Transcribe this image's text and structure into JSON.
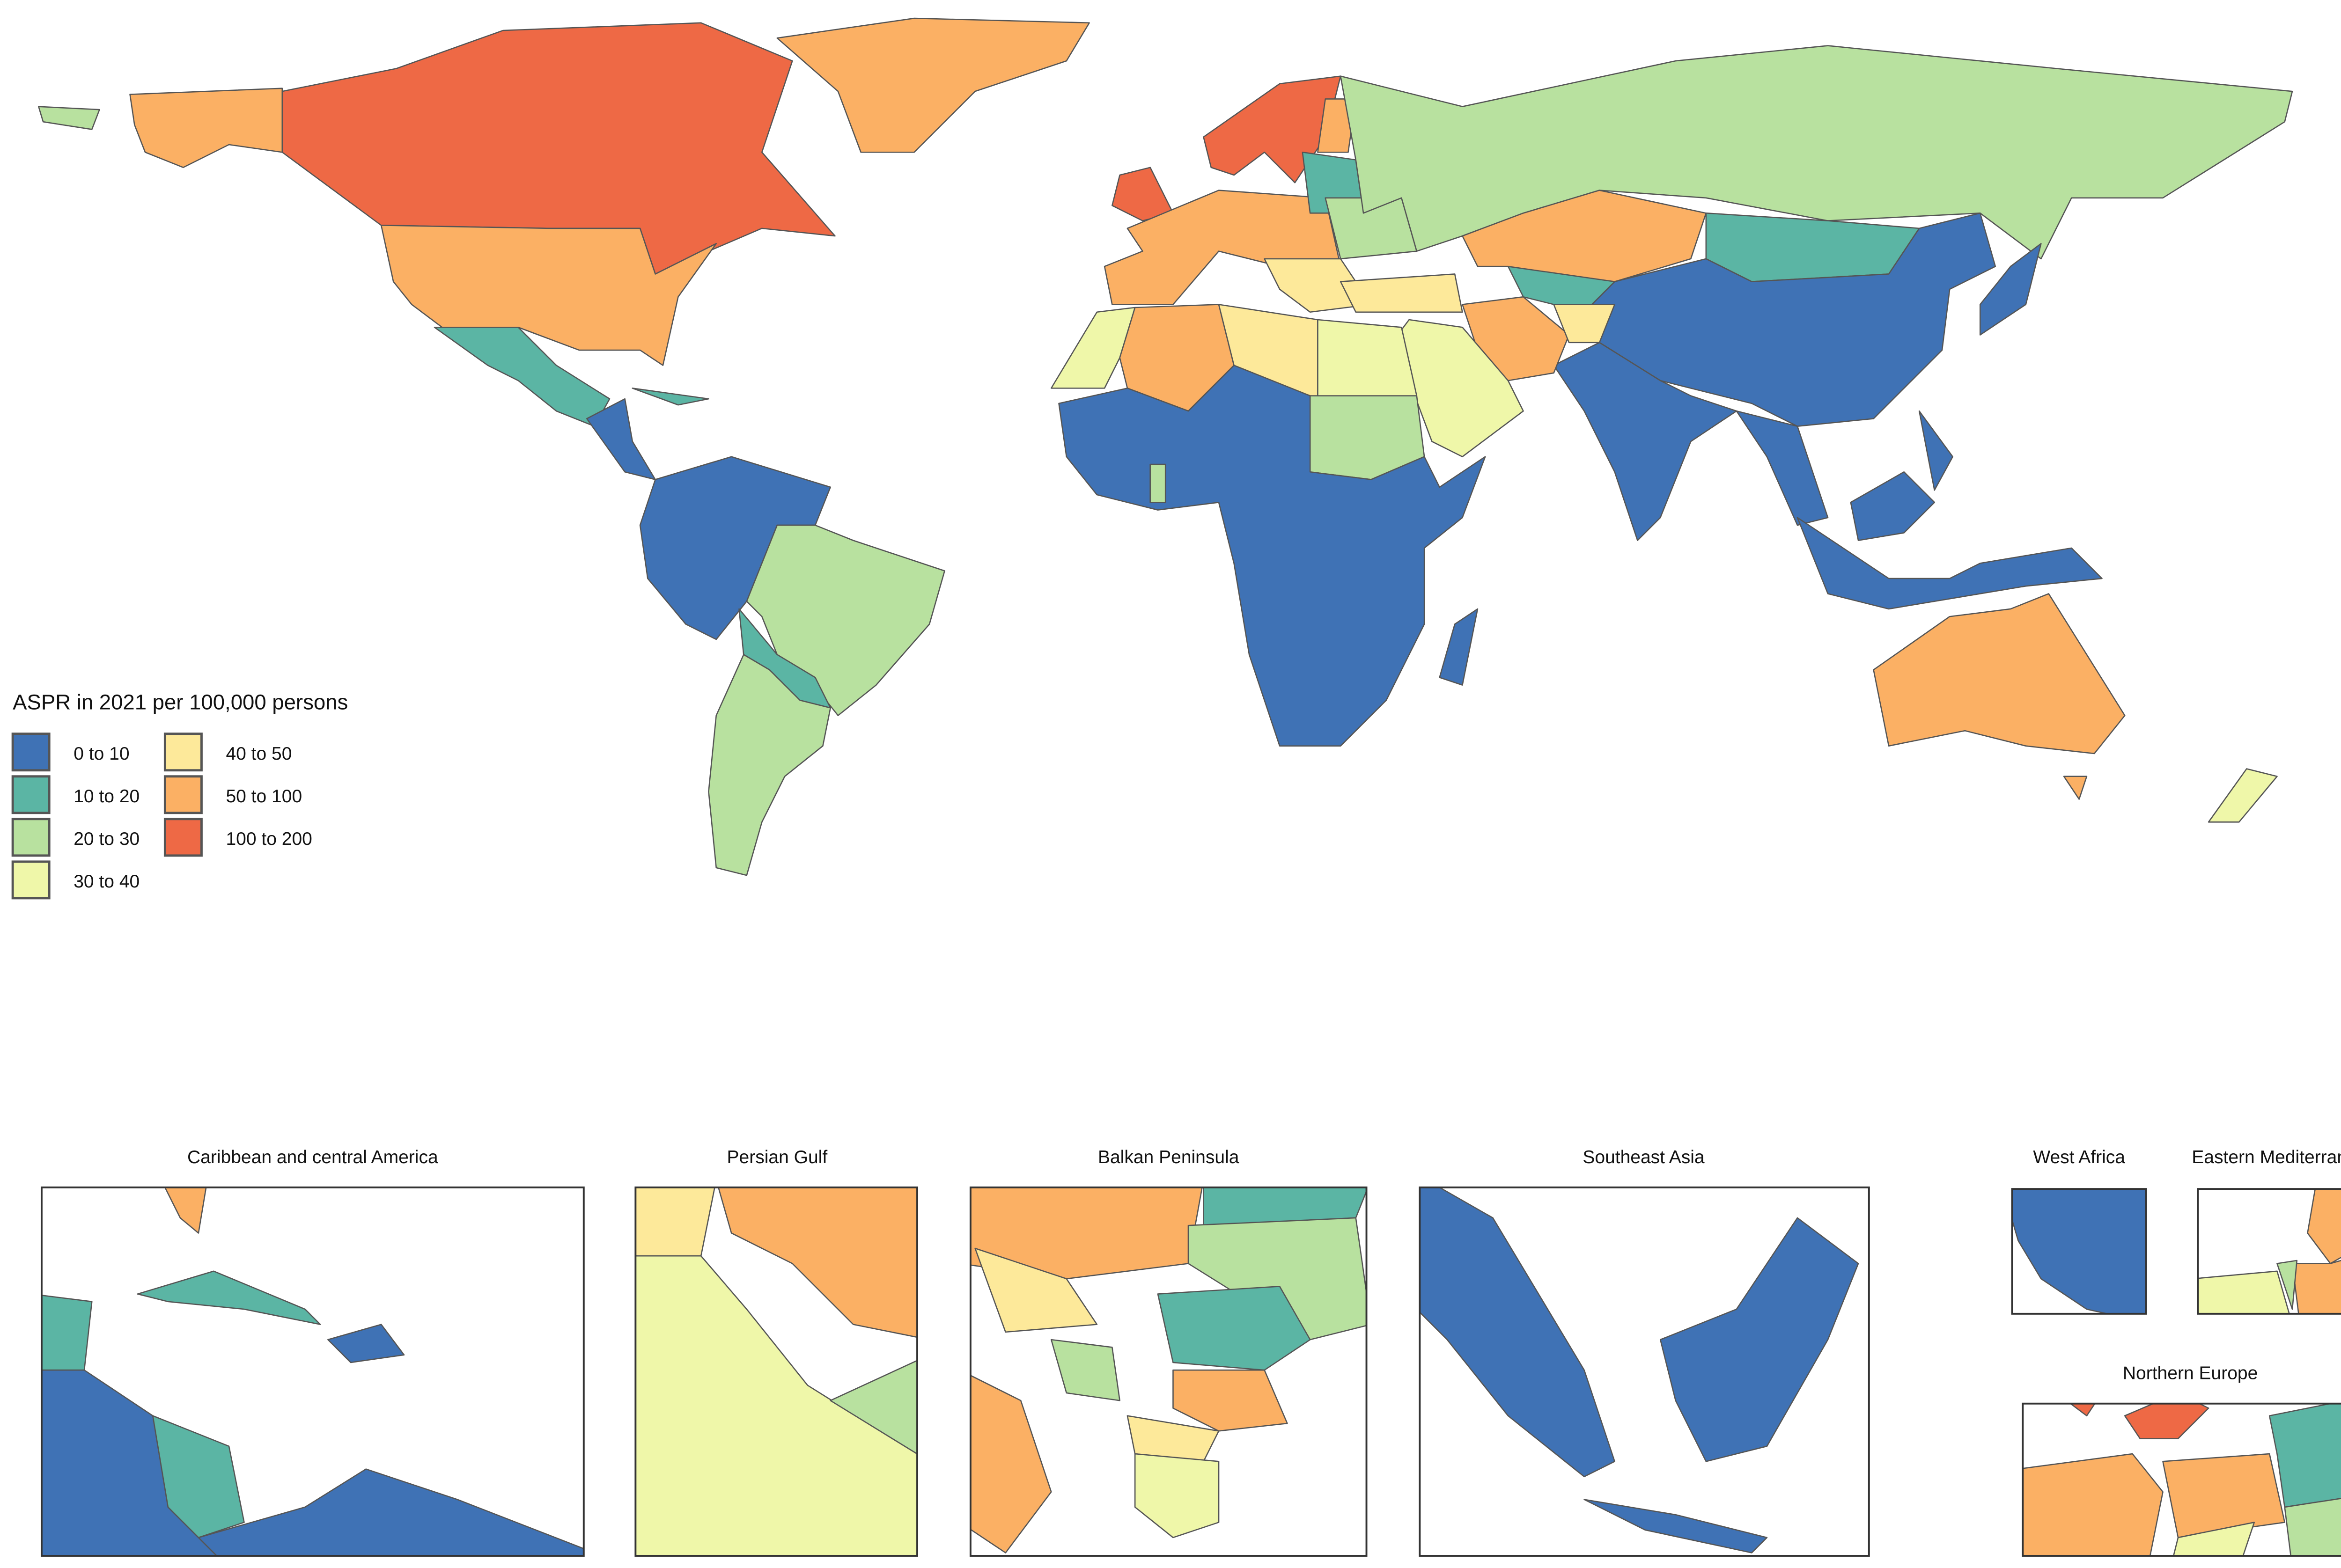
{
  "legend": {
    "title": "ASPR in 2021 per 100,000 persons",
    "items": [
      {
        "label": "0 to 10",
        "color": "#3f72b5"
      },
      {
        "label": "10 to 20",
        "color": "#5bb5a4"
      },
      {
        "label": "20 to 30",
        "color": "#b8e19f"
      },
      {
        "label": "30 to 40",
        "color": "#eff7a9"
      },
      {
        "label": "40 to 50",
        "color": "#fde99a"
      },
      {
        "label": "50 to 100",
        "color": "#fbb064"
      },
      {
        "label": "100 to 200",
        "color": "#ee6945"
      }
    ]
  },
  "insets": [
    {
      "title": "Caribbean and central America"
    },
    {
      "title": "Persian Gulf"
    },
    {
      "title": "Balkan Peninsula"
    },
    {
      "title": "Southeast Asia"
    },
    {
      "title": "West Africa"
    },
    {
      "title": "Eastern Mediterranean"
    },
    {
      "title": "Northern Europe"
    }
  ]
}
